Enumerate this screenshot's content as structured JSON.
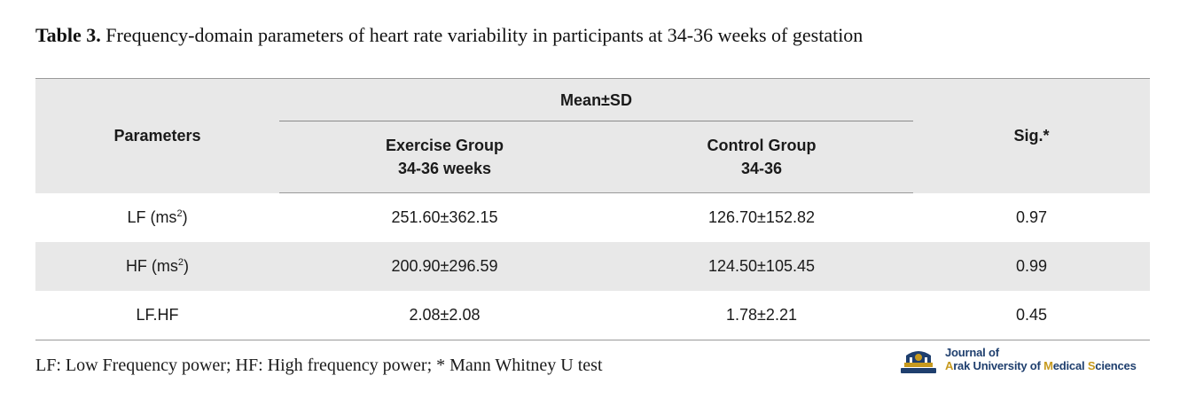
{
  "caption": {
    "label": "Table 3.",
    "text": "Frequency-domain parameters of heart rate variability in participants at 34-36 weeks of gestation"
  },
  "table": {
    "header": {
      "parameters": "Parameters",
      "mean_sd": "Mean±SD",
      "exercise_line1": "Exercise Group",
      "exercise_line2": "34-36 weeks",
      "control_line1": "Control Group",
      "control_line2": "34-36",
      "sig": "Sig.*"
    },
    "rows": [
      {
        "param": "LF (ms",
        "param_sup": "2",
        "param_close": ")",
        "exercise": "251.60±362.15",
        "control": "126.70±152.82",
        "sig": "0.97"
      },
      {
        "param": "HF (ms",
        "param_sup": "2",
        "param_close": ")",
        "exercise": "200.90±296.59",
        "control": "124.50±105.45",
        "sig": "0.99"
      },
      {
        "param": "LF.HF",
        "exercise": "2.08±2.08",
        "control": "1.78±2.21",
        "sig": "0.45"
      }
    ]
  },
  "footnote": "LF: Low Frequency power; HF: High frequency power; * Mann Whitney U test",
  "logo": {
    "line1": "Journal of",
    "line2_a": "A",
    "line2_b": "rak University of ",
    "line2_c": "M",
    "line2_d": "edical ",
    "line2_e": "S",
    "line2_f": "ciences",
    "icon": "journal-emblem-icon",
    "colors": {
      "navy": "#1f3f6e",
      "gold": "#c79a1e"
    }
  }
}
